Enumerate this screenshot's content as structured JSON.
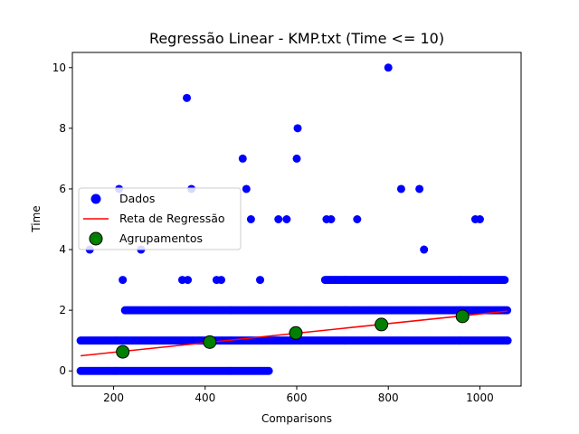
{
  "chart_data": {
    "type": "scatter",
    "title": "Regressão Linear - KMP.txt (Time <= 10)",
    "xlabel": "Comparisons",
    "ylabel": "Time",
    "xlim": [
      110,
      1090
    ],
    "ylim": [
      -0.5,
      10.5
    ],
    "x_ticks": [
      200,
      400,
      600,
      800,
      1000
    ],
    "y_ticks": [
      0,
      2,
      4,
      6,
      8,
      10
    ],
    "x_tick_labels": [
      "200",
      "400",
      "600",
      "800",
      "1000"
    ],
    "y_tick_labels": [
      "0",
      "2",
      "4",
      "6",
      "8",
      "10"
    ],
    "grid": false,
    "legend_position": "center-left",
    "series": [
      {
        "name": "Dados",
        "kind": "scatter",
        "color": "#0000ff",
        "bands": [
          {
            "y": 0,
            "x_from": 128,
            "x_to": 540
          },
          {
            "y": 1,
            "x_from": 128,
            "x_to": 1062
          },
          {
            "y": 2,
            "x_from": 225,
            "x_to": 1062
          },
          {
            "y": 3,
            "x_from": 662,
            "x_to": 1056
          }
        ],
        "points": [
          {
            "x": 148,
            "y": 4
          },
          {
            "x": 212,
            "y": 6
          },
          {
            "x": 220,
            "y": 3
          },
          {
            "x": 260,
            "y": 4
          },
          {
            "x": 350,
            "y": 3
          },
          {
            "x": 360,
            "y": 9
          },
          {
            "x": 362,
            "y": 3
          },
          {
            "x": 370,
            "y": 6
          },
          {
            "x": 425,
            "y": 3
          },
          {
            "x": 435,
            "y": 3
          },
          {
            "x": 482,
            "y": 7
          },
          {
            "x": 490,
            "y": 6
          },
          {
            "x": 500,
            "y": 5
          },
          {
            "x": 520,
            "y": 3
          },
          {
            "x": 560,
            "y": 5
          },
          {
            "x": 578,
            "y": 5
          },
          {
            "x": 600,
            "y": 7
          },
          {
            "x": 602,
            "y": 8
          },
          {
            "x": 665,
            "y": 5
          },
          {
            "x": 675,
            "y": 5
          },
          {
            "x": 732,
            "y": 5
          },
          {
            "x": 800,
            "y": 10
          },
          {
            "x": 828,
            "y": 6
          },
          {
            "x": 868,
            "y": 6
          },
          {
            "x": 878,
            "y": 4
          },
          {
            "x": 990,
            "y": 5
          },
          {
            "x": 1000,
            "y": 5
          }
        ]
      },
      {
        "name": "Reta de Regressão",
        "kind": "line",
        "color": "#ff0000",
        "x": [
          128,
          1060
        ],
        "y": [
          0.5,
          1.97
        ]
      },
      {
        "name": "Agrupamentos",
        "kind": "scatter",
        "color": "#008000",
        "edge_color": "#000000",
        "x": [
          220,
          410,
          598,
          785,
          962
        ],
        "y": [
          0.63,
          0.95,
          1.25,
          1.53,
          1.8
        ]
      }
    ]
  }
}
